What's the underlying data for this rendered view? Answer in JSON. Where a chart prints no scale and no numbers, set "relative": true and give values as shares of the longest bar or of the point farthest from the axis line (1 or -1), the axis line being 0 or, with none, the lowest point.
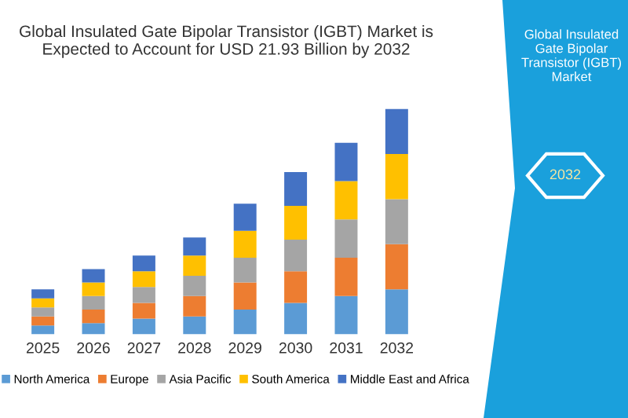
{
  "chart_data": {
    "type": "bar",
    "stacked": true,
    "relative": true,
    "title": "Global Insulated Gate Bipolar Transistor (IGBT) Market is Expected to Account for USD 21.93 Billion by 2032",
    "categories": [
      "2025",
      "2026",
      "2027",
      "2028",
      "2029",
      "2030",
      "2031",
      "2032"
    ],
    "series": [
      {
        "name": "North America",
        "color": "#5b9bd5",
        "values": [
          0.04,
          0.05,
          0.07,
          0.08,
          0.11,
          0.14,
          0.17,
          0.2
        ]
      },
      {
        "name": "Europe",
        "color": "#ed7d31",
        "values": [
          0.04,
          0.06,
          0.07,
          0.09,
          0.12,
          0.14,
          0.17,
          0.2
        ]
      },
      {
        "name": "Asia Pacific",
        "color": "#a5a5a5",
        "values": [
          0.04,
          0.06,
          0.07,
          0.09,
          0.11,
          0.14,
          0.17,
          0.2
        ]
      },
      {
        "name": "South America",
        "color": "#ffc000",
        "values": [
          0.04,
          0.06,
          0.07,
          0.09,
          0.12,
          0.15,
          0.17,
          0.2
        ]
      },
      {
        "name": "Middle East and Africa",
        "color": "#4472c4",
        "values": [
          0.04,
          0.06,
          0.07,
          0.08,
          0.12,
          0.15,
          0.17,
          0.2
        ]
      }
    ],
    "annotations": [
      "Global Insulated Gate Bipolar Transistor (IGBT) Market",
      "2032"
    ],
    "legend": "bottom",
    "grid": false
  }
}
